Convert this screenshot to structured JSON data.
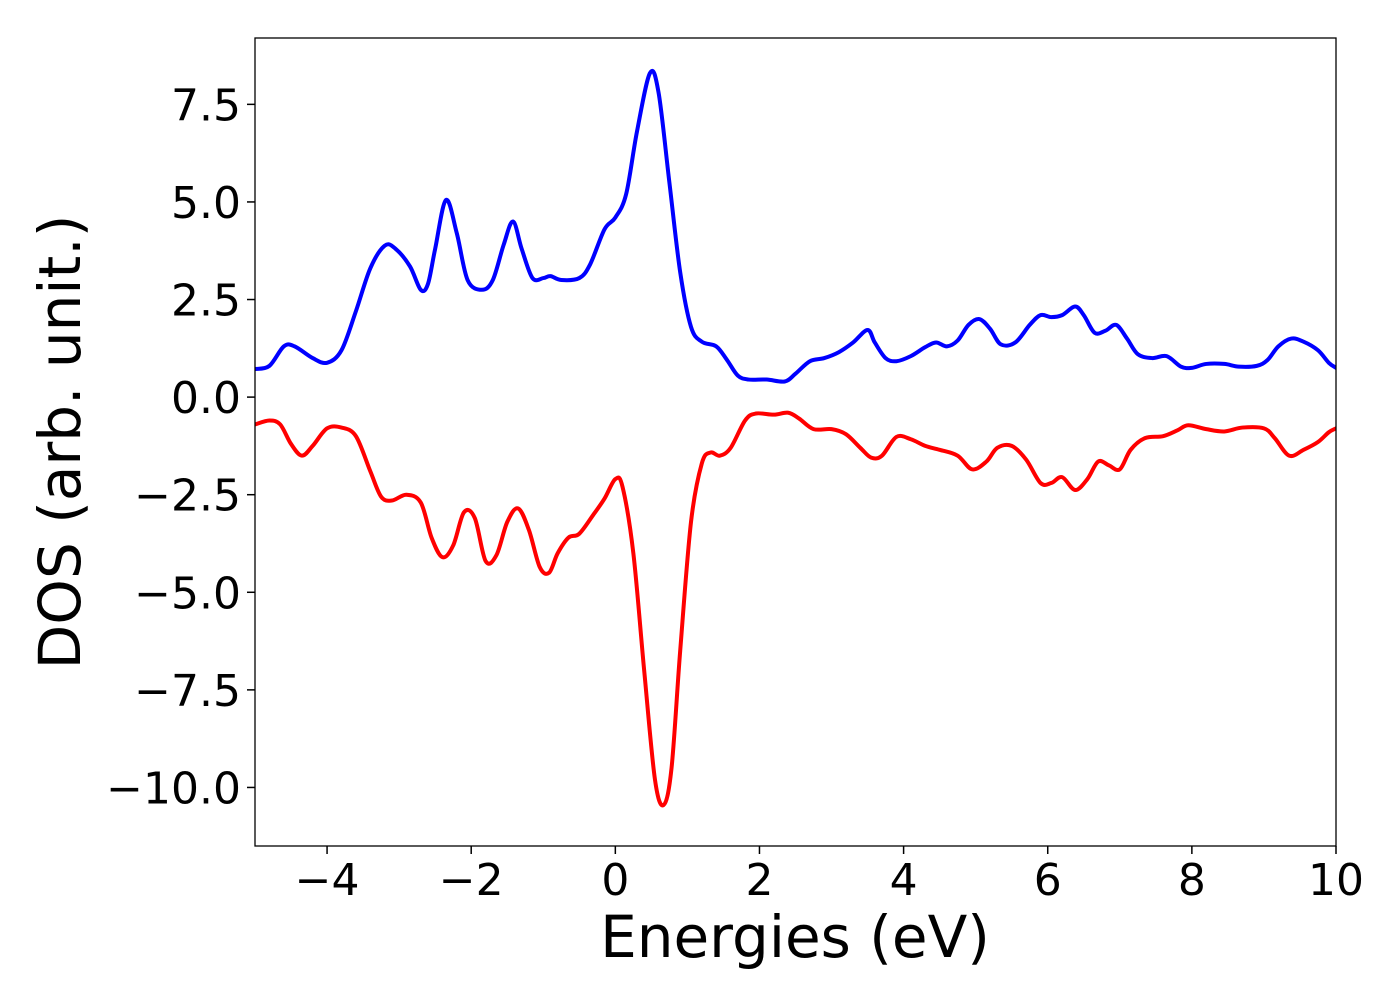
{
  "chart_data": {
    "type": "line",
    "title": "",
    "xlabel": "Energies (eV)",
    "ylabel": "DOS (arb. unit.)",
    "xlim": [
      -5,
      10
    ],
    "ylim": [
      -11.5,
      9.2
    ],
    "grid": false,
    "x_ticks": [
      {
        "value": -4,
        "label": "−4"
      },
      {
        "value": -2,
        "label": "−2"
      },
      {
        "value": 0,
        "label": "0"
      },
      {
        "value": 2,
        "label": "2"
      },
      {
        "value": 4,
        "label": "4"
      },
      {
        "value": 6,
        "label": "6"
      },
      {
        "value": 8,
        "label": "8"
      },
      {
        "value": 10,
        "label": "10"
      }
    ],
    "y_ticks": [
      {
        "value": 7.5,
        "label": "7.5"
      },
      {
        "value": 5.0,
        "label": "5.0"
      },
      {
        "value": 2.5,
        "label": "2.5"
      },
      {
        "value": 0.0,
        "label": "0.0"
      },
      {
        "value": -2.5,
        "label": "−2.5"
      },
      {
        "value": -5.0,
        "label": "−5.0"
      },
      {
        "value": -7.5,
        "label": "−7.5"
      },
      {
        "value": -10.0,
        "label": "−10.0"
      }
    ],
    "series": [
      {
        "color": "#0000ff",
        "points": [
          [
            -5.0,
            0.72
          ],
          [
            -4.8,
            0.8
          ],
          [
            -4.6,
            1.3
          ],
          [
            -4.45,
            1.3
          ],
          [
            -4.2,
            1.0
          ],
          [
            -4.0,
            0.88
          ],
          [
            -3.8,
            1.2
          ],
          [
            -3.6,
            2.2
          ],
          [
            -3.4,
            3.3
          ],
          [
            -3.2,
            3.88
          ],
          [
            -3.05,
            3.8
          ],
          [
            -2.85,
            3.35
          ],
          [
            -2.7,
            2.75
          ],
          [
            -2.6,
            2.9
          ],
          [
            -2.5,
            3.8
          ],
          [
            -2.35,
            5.05
          ],
          [
            -2.2,
            4.2
          ],
          [
            -2.05,
            3.0
          ],
          [
            -1.85,
            2.75
          ],
          [
            -1.7,
            3.0
          ],
          [
            -1.55,
            3.9
          ],
          [
            -1.42,
            4.5
          ],
          [
            -1.3,
            3.8
          ],
          [
            -1.15,
            3.05
          ],
          [
            -1.0,
            3.05
          ],
          [
            -0.9,
            3.1
          ],
          [
            -0.75,
            3.0
          ],
          [
            -0.5,
            3.05
          ],
          [
            -0.35,
            3.4
          ],
          [
            -0.15,
            4.3
          ],
          [
            0.0,
            4.6
          ],
          [
            0.15,
            5.2
          ],
          [
            0.3,
            6.8
          ],
          [
            0.48,
            8.3
          ],
          [
            0.6,
            7.8
          ],
          [
            0.75,
            5.5
          ],
          [
            0.9,
            3.2
          ],
          [
            1.05,
            1.8
          ],
          [
            1.2,
            1.42
          ],
          [
            1.4,
            1.3
          ],
          [
            1.55,
            0.95
          ],
          [
            1.7,
            0.55
          ],
          [
            1.85,
            0.45
          ],
          [
            2.1,
            0.45
          ],
          [
            2.35,
            0.4
          ],
          [
            2.5,
            0.6
          ],
          [
            2.7,
            0.92
          ],
          [
            2.9,
            1.0
          ],
          [
            3.1,
            1.15
          ],
          [
            3.3,
            1.4
          ],
          [
            3.5,
            1.72
          ],
          [
            3.6,
            1.4
          ],
          [
            3.75,
            1.0
          ],
          [
            3.9,
            0.92
          ],
          [
            4.1,
            1.05
          ],
          [
            4.3,
            1.28
          ],
          [
            4.45,
            1.4
          ],
          [
            4.6,
            1.3
          ],
          [
            4.75,
            1.45
          ],
          [
            4.9,
            1.85
          ],
          [
            5.05,
            2.0
          ],
          [
            5.2,
            1.75
          ],
          [
            5.35,
            1.35
          ],
          [
            5.55,
            1.4
          ],
          [
            5.75,
            1.85
          ],
          [
            5.9,
            2.1
          ],
          [
            6.05,
            2.05
          ],
          [
            6.2,
            2.1
          ],
          [
            6.38,
            2.32
          ],
          [
            6.5,
            2.1
          ],
          [
            6.65,
            1.65
          ],
          [
            6.8,
            1.7
          ],
          [
            6.95,
            1.85
          ],
          [
            7.1,
            1.5
          ],
          [
            7.25,
            1.1
          ],
          [
            7.45,
            1.0
          ],
          [
            7.65,
            1.05
          ],
          [
            7.85,
            0.78
          ],
          [
            8.0,
            0.75
          ],
          [
            8.2,
            0.85
          ],
          [
            8.45,
            0.85
          ],
          [
            8.65,
            0.78
          ],
          [
            8.9,
            0.8
          ],
          [
            9.05,
            0.95
          ],
          [
            9.2,
            1.3
          ],
          [
            9.38,
            1.5
          ],
          [
            9.55,
            1.42
          ],
          [
            9.75,
            1.2
          ],
          [
            9.9,
            0.88
          ],
          [
            10.0,
            0.75
          ]
        ]
      },
      {
        "color": "#ff0000",
        "points": [
          [
            -5.0,
            -0.7
          ],
          [
            -4.8,
            -0.6
          ],
          [
            -4.65,
            -0.7
          ],
          [
            -4.5,
            -1.2
          ],
          [
            -4.35,
            -1.5
          ],
          [
            -4.2,
            -1.25
          ],
          [
            -4.0,
            -0.8
          ],
          [
            -3.8,
            -0.78
          ],
          [
            -3.6,
            -1.0
          ],
          [
            -3.4,
            -1.9
          ],
          [
            -3.25,
            -2.55
          ],
          [
            -3.1,
            -2.65
          ],
          [
            -2.9,
            -2.5
          ],
          [
            -2.7,
            -2.7
          ],
          [
            -2.55,
            -3.6
          ],
          [
            -2.4,
            -4.1
          ],
          [
            -2.25,
            -3.8
          ],
          [
            -2.1,
            -2.95
          ],
          [
            -1.95,
            -3.1
          ],
          [
            -1.8,
            -4.2
          ],
          [
            -1.65,
            -4.05
          ],
          [
            -1.5,
            -3.2
          ],
          [
            -1.35,
            -2.85
          ],
          [
            -1.2,
            -3.4
          ],
          [
            -1.05,
            -4.35
          ],
          [
            -0.92,
            -4.5
          ],
          [
            -0.8,
            -4.0
          ],
          [
            -0.65,
            -3.6
          ],
          [
            -0.5,
            -3.5
          ],
          [
            -0.3,
            -3.0
          ],
          [
            -0.15,
            -2.6
          ],
          [
            0.0,
            -2.1
          ],
          [
            0.1,
            -2.3
          ],
          [
            0.25,
            -4.0
          ],
          [
            0.4,
            -7.0
          ],
          [
            0.55,
            -9.8
          ],
          [
            0.67,
            -10.45
          ],
          [
            0.78,
            -9.5
          ],
          [
            0.9,
            -6.5
          ],
          [
            1.05,
            -3.2
          ],
          [
            1.2,
            -1.7
          ],
          [
            1.32,
            -1.42
          ],
          [
            1.45,
            -1.5
          ],
          [
            1.6,
            -1.3
          ],
          [
            1.8,
            -0.6
          ],
          [
            1.95,
            -0.42
          ],
          [
            2.2,
            -0.45
          ],
          [
            2.4,
            -0.4
          ],
          [
            2.55,
            -0.55
          ],
          [
            2.75,
            -0.82
          ],
          [
            3.0,
            -0.82
          ],
          [
            3.2,
            -0.95
          ],
          [
            3.4,
            -1.3
          ],
          [
            3.55,
            -1.55
          ],
          [
            3.7,
            -1.5
          ],
          [
            3.9,
            -1.02
          ],
          [
            4.1,
            -1.08
          ],
          [
            4.3,
            -1.25
          ],
          [
            4.5,
            -1.35
          ],
          [
            4.75,
            -1.5
          ],
          [
            4.95,
            -1.85
          ],
          [
            5.15,
            -1.65
          ],
          [
            5.3,
            -1.3
          ],
          [
            5.5,
            -1.25
          ],
          [
            5.7,
            -1.6
          ],
          [
            5.9,
            -2.2
          ],
          [
            6.05,
            -2.2
          ],
          [
            6.2,
            -2.05
          ],
          [
            6.38,
            -2.38
          ],
          [
            6.55,
            -2.1
          ],
          [
            6.7,
            -1.65
          ],
          [
            6.85,
            -1.75
          ],
          [
            7.0,
            -1.85
          ],
          [
            7.15,
            -1.35
          ],
          [
            7.35,
            -1.05
          ],
          [
            7.6,
            -1.0
          ],
          [
            7.8,
            -0.85
          ],
          [
            7.95,
            -0.72
          ],
          [
            8.2,
            -0.82
          ],
          [
            8.45,
            -0.88
          ],
          [
            8.7,
            -0.78
          ],
          [
            9.0,
            -0.8
          ],
          [
            9.15,
            -1.05
          ],
          [
            9.35,
            -1.5
          ],
          [
            9.55,
            -1.35
          ],
          [
            9.75,
            -1.15
          ],
          [
            9.9,
            -0.9
          ],
          [
            10.0,
            -0.8
          ]
        ]
      }
    ]
  }
}
